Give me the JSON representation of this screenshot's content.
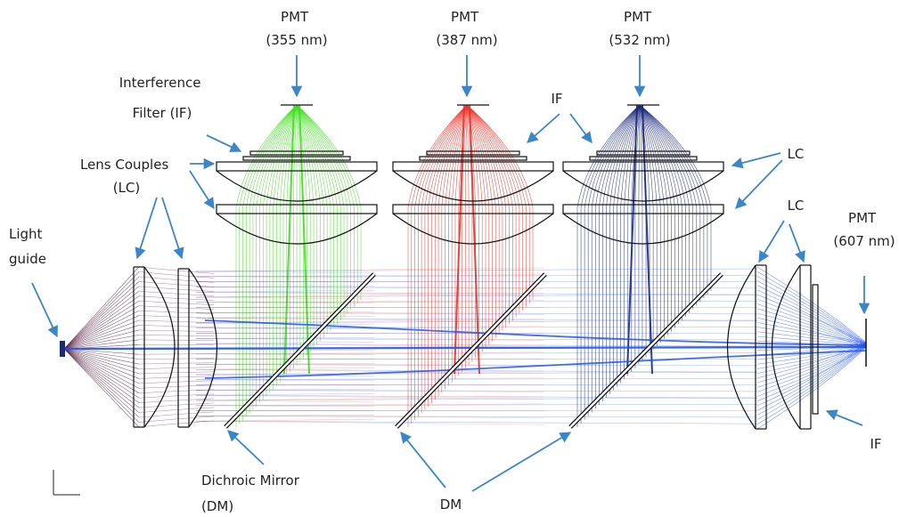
{
  "labels": {
    "pmt_355": [
      "PMT",
      "(355 nm)"
    ],
    "pmt_387": [
      "PMT",
      "(387 nm)"
    ],
    "pmt_532": [
      "PMT",
      "(532 nm)"
    ],
    "pmt_607": [
      "PMT",
      "(607 nm)"
    ],
    "interference_filter": [
      "Interference",
      "Filter (IF)"
    ],
    "lens_couples": [
      "Lens Couples",
      "(LC)"
    ],
    "light_guide": [
      "Light",
      "guide"
    ],
    "if_top": "IF",
    "lc_top_right": "LC",
    "lc_right": "LC",
    "if_right": "IF",
    "dichroic_mirror": [
      "Dichroic Mirror",
      "(DM)"
    ],
    "dm_bottom": "DM"
  },
  "colors": {
    "ray_355": "#44dd22",
    "ray_387": "#e8342a",
    "ray_532": "#1a2a7a",
    "ray_607": "#2255ee",
    "ray_source": "#5a2a4a",
    "arrow": "#3a86c8",
    "optics": "#111111"
  }
}
